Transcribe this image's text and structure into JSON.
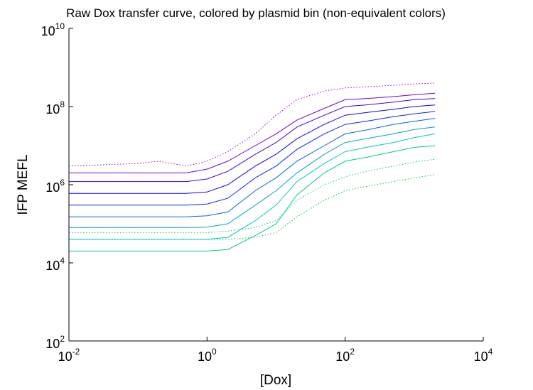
{
  "chart_data": {
    "type": "line",
    "title": "Raw Dox transfer curve, colored by plasmid bin (non-equivalent colors)",
    "xlabel": "[Dox]",
    "ylabel": "IFP MEFL",
    "xscale": "log",
    "yscale": "log",
    "xlim": [
      0.01,
      10000
    ],
    "ylim": [
      100,
      10000000000
    ],
    "grid": false,
    "x_ticks": [
      {
        "base": "10",
        "exp": "-2",
        "value": 0.01
      },
      {
        "base": "10",
        "exp": "0",
        "value": 1
      },
      {
        "base": "10",
        "exp": "2",
        "value": 100
      },
      {
        "base": "10",
        "exp": "4",
        "value": 10000
      }
    ],
    "y_ticks": [
      {
        "base": "10",
        "exp": "2",
        "value": 100
      },
      {
        "base": "10",
        "exp": "4",
        "value": 10000
      },
      {
        "base": "10",
        "exp": "6",
        "value": 1000000
      },
      {
        "base": "10",
        "exp": "8",
        "value": 100000000
      },
      {
        "base": "10",
        "exp": "10",
        "value": 10000000000
      }
    ],
    "x": [
      0.01,
      0.1,
      0.2,
      0.5,
      1,
      2,
      5,
      10,
      20,
      50,
      100,
      200,
      500,
      1000,
      2000
    ],
    "colors": {
      "low_bin": "#00cc33",
      "mid_bin": "#00c8d2",
      "high_bin": "#0000ff",
      "top_bin": "#a000d0"
    },
    "series": [
      {
        "values": [
          40000,
          40000,
          40000,
          40000,
          40000,
          40000,
          45000,
          60000,
          150000,
          400000,
          700000,
          900000,
          1200000,
          1500000,
          1800000
        ]
      },
      {
        "values": [
          60000,
          60000,
          60000,
          60000,
          60000,
          65000,
          80000,
          120000,
          400000,
          1000000,
          1600000,
          2200000,
          3000000,
          3800000,
          4500000
        ]
      },
      {
        "values": [
          20000,
          20000,
          20000,
          20000,
          20000,
          22000,
          50000,
          100000,
          550000,
          2000000,
          4000000,
          5000000,
          7000000,
          9000000,
          10000000
        ]
      },
      {
        "values": [
          40000,
          40000,
          40000,
          40000,
          40000,
          45000,
          120000,
          300000,
          1200000,
          3500000,
          7000000,
          9000000,
          12000000,
          16000000,
          20000000
        ]
      },
      {
        "values": [
          80000,
          80000,
          80000,
          80000,
          82000,
          100000,
          300000,
          700000,
          2000000,
          6000000,
          12000000,
          15000000,
          20000000,
          26000000,
          30000000
        ]
      },
      {
        "values": [
          150000,
          150000,
          150000,
          150000,
          160000,
          200000,
          700000,
          1500000,
          4000000,
          10000000,
          20000000,
          25000000,
          35000000,
          42000000,
          50000000
        ]
      },
      {
        "values": [
          300000,
          300000,
          300000,
          300000,
          320000,
          450000,
          1500000,
          3000000,
          8000000,
          20000000,
          35000000,
          42000000,
          55000000,
          65000000,
          75000000
        ]
      },
      {
        "values": [
          600000,
          600000,
          600000,
          600000,
          650000,
          1000000,
          3000000,
          6000000,
          15000000,
          35000000,
          60000000,
          70000000,
          85000000,
          100000000,
          110000000
        ]
      },
      {
        "values": [
          1200000,
          1200000,
          1200000,
          1200000,
          1400000,
          2200000,
          6000000,
          12000000,
          30000000,
          60000000,
          100000000,
          110000000,
          130000000,
          150000000,
          160000000
        ]
      },
      {
        "values": [
          2000000,
          2000000,
          2000000,
          2000000,
          2500000,
          4000000,
          10000000,
          20000000,
          45000000,
          90000000,
          150000000,
          160000000,
          180000000,
          200000000,
          220000000
        ]
      },
      {
        "values": [
          3000000,
          3500000,
          4000000,
          3000000,
          4000000,
          7000000,
          20000000,
          60000000,
          150000000,
          250000000,
          300000000,
          320000000,
          350000000,
          380000000,
          400000000
        ]
      }
    ]
  }
}
